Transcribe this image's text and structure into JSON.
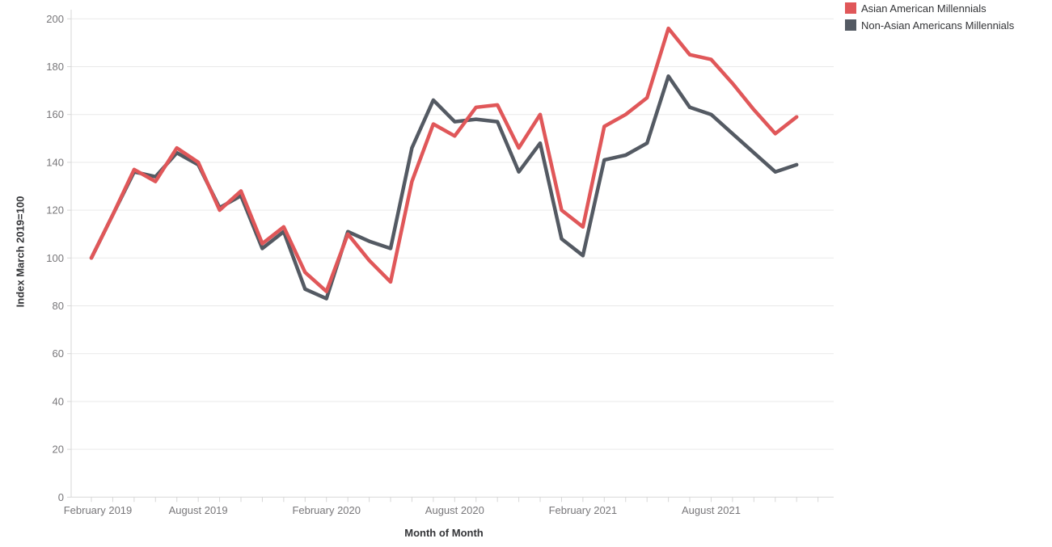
{
  "chart_data": {
    "type": "line",
    "title": "",
    "xlabel": "Month of Month",
    "ylabel": "Index March 2019=100",
    "x": [
      "Mar 2019",
      "Apr 2019",
      "May 2019",
      "Jun 2019",
      "Jul 2019",
      "Aug 2019",
      "Sep 2019",
      "Oct 2019",
      "Nov 2019",
      "Dec 2019",
      "Jan 2020",
      "Feb 2020",
      "Mar 2020",
      "Apr 2020",
      "May 2020",
      "Jun 2020",
      "Jul 2020",
      "Aug 2020",
      "Sep 2020",
      "Oct 2020",
      "Nov 2020",
      "Dec 2020",
      "Jan 2021",
      "Feb 2021",
      "Mar 2021",
      "Apr 2021",
      "May 2021",
      "Jun 2021",
      "Jul 2021",
      "Aug 2021",
      "Sep 2021",
      "Oct 2021",
      "Nov 2021",
      "Dec 2021"
    ],
    "series": [
      {
        "name": "Asian American Millennials",
        "color": "#e05759",
        "values": [
          100,
          118,
          137,
          132,
          146,
          140,
          120,
          128,
          106,
          113,
          94,
          86,
          110,
          99,
          90,
          132,
          156,
          151,
          163,
          164,
          146,
          160,
          120,
          113,
          155,
          160,
          167,
          196,
          185,
          183,
          173,
          162,
          152,
          159
        ]
      },
      {
        "name": "Non-Asian Americans Millennials",
        "color": "#545a63",
        "values": [
          100,
          118,
          136,
          134,
          144,
          139,
          121,
          126,
          104,
          111,
          87,
          83,
          111,
          107,
          104,
          146,
          166,
          157,
          158,
          157,
          136,
          148,
          108,
          101,
          141,
          143,
          148,
          176,
          163,
          160,
          152,
          144,
          136,
          139
        ]
      }
    ],
    "ylim": [
      0,
      200
    ],
    "yticks": [
      0,
      20,
      40,
      60,
      80,
      100,
      120,
      140,
      160,
      180,
      200
    ],
    "x_axis_tick_labels": [
      {
        "label": "February 2019",
        "month_index": -1
      },
      {
        "label": "August 2019",
        "month_index": 5
      },
      {
        "label": "February 2020",
        "month_index": 11
      },
      {
        "label": "August 2020",
        "month_index": 17
      },
      {
        "label": "February 2021",
        "month_index": 23
      },
      {
        "label": "August 2021",
        "month_index": 29
      }
    ],
    "grid": "horizontal",
    "legend_position": "top-right"
  },
  "colors": {
    "background": "#ffffff",
    "gridline": "#e9e9e9",
    "axis_line": "#d7d7d7",
    "tick_mark": "#d7d7d7",
    "tick_label": "#78777a",
    "axis_title": "#333437",
    "legend_text": "#333437"
  }
}
